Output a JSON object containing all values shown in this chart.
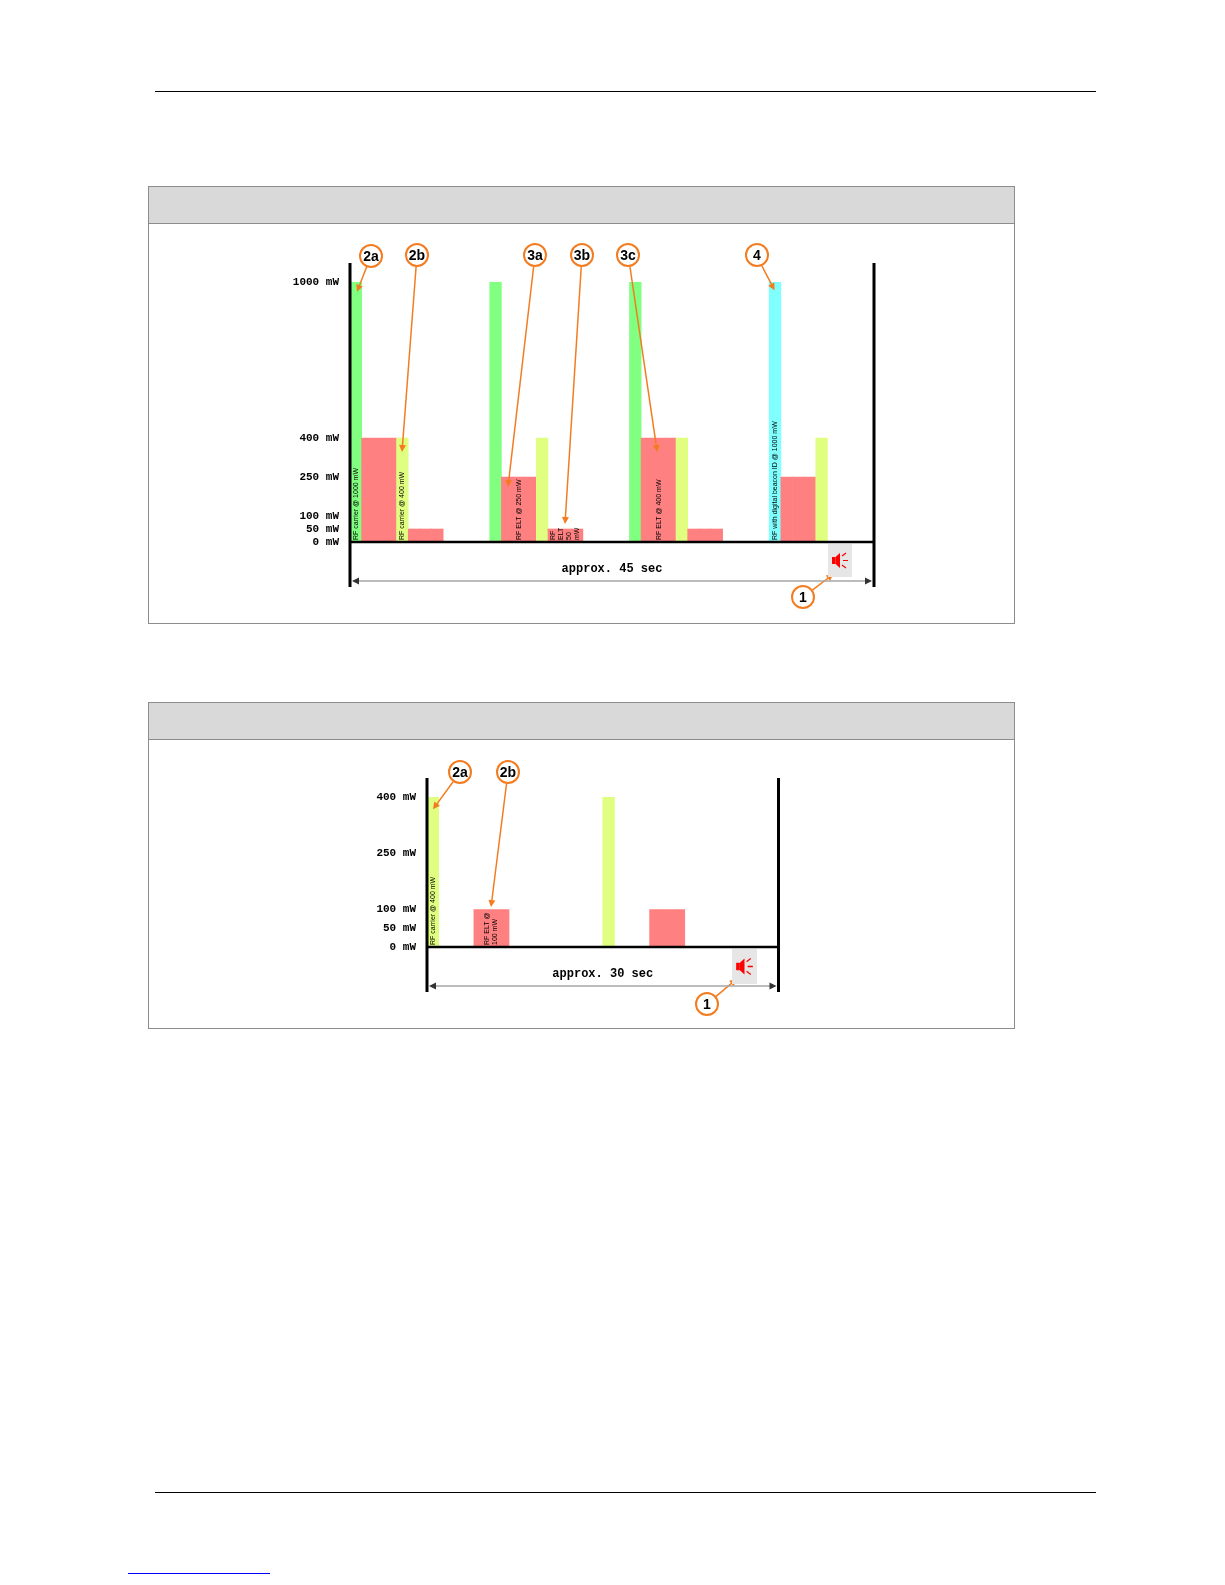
{
  "chart_data": [
    {
      "type": "bar",
      "xlabel": "approx. 45 sec",
      "tick_labels": "y",
      "categories": [
        null,
        null,
        null,
        null,
        null,
        null,
        null,
        null,
        null,
        null,
        null,
        null,
        null,
        null,
        null,
        null,
        null,
        null,
        null,
        null,
        null,
        null,
        null,
        null,
        null,
        null,
        null,
        null,
        null,
        null,
        null,
        null,
        null,
        null,
        null,
        null,
        null,
        null,
        null,
        null,
        null,
        null,
        null,
        null,
        null
      ],
      "series": [
        {
          "values": [
            1000,
            400,
            400,
            400,
            400,
            50,
            50,
            50,
            null,
            null,
            null,
            null,
            1000,
            250,
            250,
            250,
            400,
            50,
            50,
            50,
            null,
            null,
            null,
            null,
            1000,
            400,
            400,
            400,
            400,
            50,
            50,
            50,
            null,
            null,
            null,
            null,
            1000,
            250,
            250,
            250,
            400,
            null,
            null,
            null,
            null
          ],
          "colors": [
            "#80ff80",
            "#ff8080",
            "#ff8080",
            "#ff8080",
            "#e0ff80",
            "#ff8080",
            "#ff8080",
            "#ff8080",
            null,
            null,
            null,
            null,
            "#80ff80",
            "#ff8080",
            "#ff8080",
            "#ff8080",
            "#e0ff80",
            "#ff8080",
            "#ff8080",
            "#ff8080",
            null,
            null,
            null,
            null,
            "#80ff80",
            "#ff8080",
            "#ff8080",
            "#ff8080",
            "#e0ff80",
            "#ff8080",
            "#ff8080",
            "#ff8080",
            null,
            null,
            null,
            null,
            "#80ffff",
            "#ff8080",
            "#ff8080",
            "#ff8080",
            "#e0ff80",
            null,
            null,
            null,
            null
          ],
          "value_labels": [
            "RF carrier @ 1000 mW",
            null,
            null,
            null,
            "RF carrier @ 400 mW",
            null,
            null,
            null,
            null,
            null,
            null,
            null,
            null,
            null,
            "RF ELT @ 250 mW",
            null,
            null,
            null,
            "RF ELT 50 mW",
            null,
            null,
            null,
            null,
            null,
            null,
            null,
            "RF ELT @ 400 mW",
            null,
            null,
            null,
            null,
            null,
            null,
            null,
            null,
            null,
            "RF with digital beacon ID @ 1000 mW",
            null,
            null,
            null,
            null,
            null,
            null,
            null,
            null
          ]
        }
      ],
      "ylim": [
        0,
        1000
      ],
      "yticks": [
        {
          "value": 0,
          "label": "0 mW"
        },
        {
          "value": 50,
          "label": "50 mW"
        },
        {
          "value": 100,
          "label": "100 mW"
        },
        {
          "value": 250,
          "label": "250 mW"
        },
        {
          "value": 400,
          "label": "400 mW"
        },
        {
          "value": 1000,
          "label": "1000 mW"
        }
      ],
      "annotations": [
        "2a",
        "2b",
        "3a",
        "3b",
        "3c",
        "4",
        "1"
      ]
    },
    {
      "type": "bar",
      "xlabel": "approx. 30 sec",
      "tick_labels": "y",
      "categories": [
        null,
        null,
        null,
        null,
        null,
        null,
        null,
        null,
        null,
        null,
        null,
        null,
        null,
        null,
        null,
        null,
        null,
        null,
        null,
        null,
        null,
        null,
        null,
        null,
        null,
        null,
        null,
        null,
        null,
        null
      ],
      "series": [
        {
          "values": [
            400,
            null,
            null,
            null,
            100,
            100,
            100,
            null,
            null,
            null,
            null,
            null,
            null,
            null,
            null,
            400,
            null,
            null,
            null,
            100,
            100,
            100,
            null,
            null,
            null,
            null,
            null,
            null,
            null,
            null
          ],
          "colors": [
            "#e0ff80",
            null,
            null,
            null,
            "#ff8080",
            "#ff8080",
            "#ff8080",
            null,
            null,
            null,
            null,
            null,
            null,
            null,
            null,
            "#e0ff80",
            null,
            null,
            null,
            "#ff8080",
            "#ff8080",
            "#ff8080",
            null,
            null,
            null,
            null,
            null,
            null,
            null,
            null
          ],
          "value_labels": [
            "RF carrier @ 400 mW",
            null,
            null,
            null,
            null,
            "RF ELT @ 100 mW",
            null,
            null,
            null,
            null,
            null,
            null,
            null,
            null,
            null,
            null,
            null,
            null,
            null,
            null,
            null,
            null,
            null,
            null,
            null,
            null,
            null,
            null,
            null,
            null
          ]
        }
      ],
      "ylim": [
        0,
        400
      ],
      "yticks": [
        {
          "value": 0,
          "label": "0 mW"
        },
        {
          "value": 50,
          "label": "50 mW"
        },
        {
          "value": 100,
          "label": "100 mW"
        },
        {
          "value": 250,
          "label": "250 mW"
        },
        {
          "value": 400,
          "label": "400 mW"
        }
      ],
      "annotations": [
        "2a",
        "2b",
        "1"
      ]
    }
  ]
}
